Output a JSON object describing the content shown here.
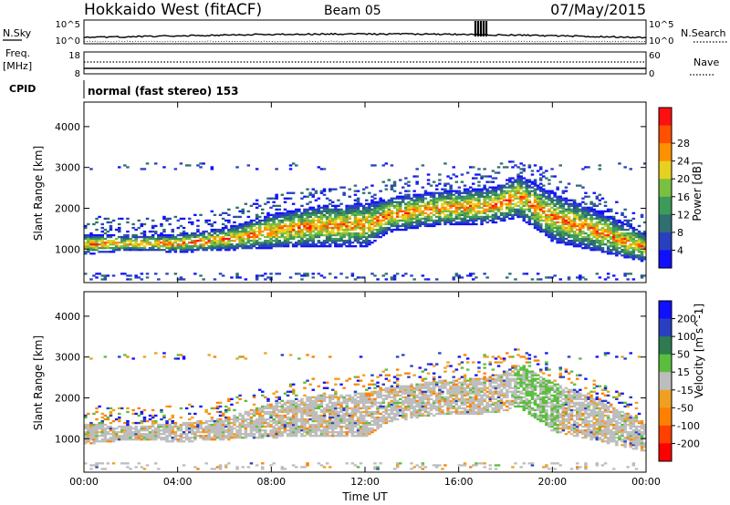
{
  "header": {
    "station": "Hokkaido West (fitACF)",
    "beam": "Beam 05",
    "date": "07/May/2015"
  },
  "top_panel": {
    "left_label": "N.Sky",
    "left_ticks": [
      "10^5",
      "10^0"
    ],
    "right_ticks": [
      "10^5",
      "10^0"
    ],
    "right_label": "N.Search",
    "freq_label": "Freq.",
    "freq_unit": "[MHz]",
    "freq_ticks": [
      "18",
      "8"
    ],
    "nave_ticks": [
      "60",
      "0"
    ],
    "nave_label": "Nave",
    "cpid_label": "CPID",
    "cpid_value": "normal (fast stereo) 153"
  },
  "colors": {
    "power_scale": [
      "#1010ff",
      "#2840c0",
      "#2f6f6f",
      "#3e9a5a",
      "#7ac040",
      "#e8d020",
      "#ff9000",
      "#ff5000",
      "#ff1010"
    ],
    "velocity_scale": [
      "#1010ff",
      "#2840c0",
      "#2e7b50",
      "#5abe3c",
      "#bdbdbd",
      "#f0a020",
      "#ff8000",
      "#ff4000",
      "#ff0000"
    ]
  },
  "chart_data": [
    {
      "type": "heatmap",
      "title": "",
      "xlabel": "",
      "ylabel": "Slant Range [km]",
      "x_ticks": [
        "00:00",
        "04:00",
        "08:00",
        "12:00",
        "16:00",
        "20:00",
        "00:00"
      ],
      "y_ticks": [
        1000,
        2000,
        3000,
        4000
      ],
      "xlim": [
        0,
        24
      ],
      "ylim": [
        180,
        4600
      ],
      "colorbar": {
        "label": "Power [dB]",
        "ticks": [
          "4",
          "8",
          "12",
          "16",
          "20",
          "24",
          "28"
        ],
        "range": [
          0,
          30
        ]
      },
      "echo_band": [
        {
          "t": 0,
          "lo": 850,
          "hi": 1350
        },
        {
          "t": 2,
          "lo": 950,
          "hi": 1300
        },
        {
          "t": 4,
          "lo": 900,
          "hi": 1350
        },
        {
          "t": 6,
          "lo": 950,
          "hi": 1500
        },
        {
          "t": 8,
          "lo": 1000,
          "hi": 1850
        },
        {
          "t": 10,
          "lo": 1050,
          "hi": 2050
        },
        {
          "t": 12,
          "lo": 1050,
          "hi": 2100
        },
        {
          "t": 13,
          "lo": 1400,
          "hi": 2250
        },
        {
          "t": 15,
          "lo": 1550,
          "hi": 2400
        },
        {
          "t": 17.5,
          "lo": 1600,
          "hi": 2500
        },
        {
          "t": 18.5,
          "lo": 1750,
          "hi": 2800
        },
        {
          "t": 20,
          "lo": 1150,
          "hi": 2350
        },
        {
          "t": 22,
          "lo": 900,
          "hi": 1900
        },
        {
          "t": 24,
          "lo": 650,
          "hi": 1350
        }
      ]
    },
    {
      "type": "heatmap",
      "title": "",
      "xlabel": "Time UT",
      "ylabel": "Slant Range [km]",
      "x_ticks": [
        "00:00",
        "04:00",
        "08:00",
        "12:00",
        "16:00",
        "20:00",
        "00:00"
      ],
      "y_ticks": [
        1000,
        2000,
        3000,
        4000
      ],
      "xlim": [
        0,
        24
      ],
      "ylim": [
        180,
        4600
      ],
      "colorbar": {
        "label": "Velocity [m s^-1]",
        "ticks": [
          "200",
          "100",
          "50",
          "15",
          "-15",
          "-50",
          "-100",
          "-200"
        ],
        "range": [
          -250,
          250
        ]
      }
    }
  ]
}
